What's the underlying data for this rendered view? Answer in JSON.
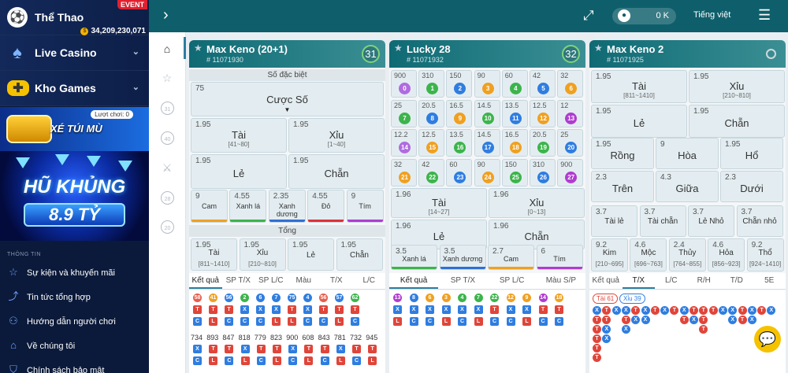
{
  "sidebar": {
    "items": [
      {
        "label": "Thể Thao",
        "badge": "EVENT",
        "jackpot": "34,209,230,071"
      },
      {
        "label": "Live Casino"
      },
      {
        "label": "Kho Games"
      }
    ],
    "banner1": {
      "text": "XÉ TÚI MÙ",
      "tag": "Lượt chơi:",
      "count": "0"
    },
    "banner2": {
      "line1": "HŨ KHỦNG",
      "line2": "8.9 TỶ"
    },
    "info_title": "THÔNG TIN",
    "info": [
      "Sự kiện và khuyến mãi",
      "Tin tức tổng hợp",
      "Hướng dẫn người chơi",
      "Về chúng tôi",
      "Chính sách bảo mật"
    ]
  },
  "header": {
    "balance": "0 K",
    "language": "Tiếng việt"
  },
  "panels": [
    {
      "name": "Max Keno (20+1)",
      "id": "# 11071930",
      "countdown": "31",
      "special_label": "Số đặc biệt",
      "special_odd": "75",
      "special_pick": "Cược Số",
      "big": [
        {
          "odd": "1.95",
          "label": "Tài",
          "range": "[41~80]"
        },
        {
          "odd": "1.95",
          "label": "Xỉu",
          "range": "[1~40]"
        },
        {
          "odd": "1.95",
          "label": "Lẻ",
          "range": ""
        },
        {
          "odd": "1.95",
          "label": "Chẵn",
          "range": ""
        }
      ],
      "colors": [
        {
          "odd": "9",
          "label": "Cam",
          "bar": "#f0a020"
        },
        {
          "odd": "4.55",
          "label": "Xanh lá",
          "bar": "#3cb44b"
        },
        {
          "odd": "2.35",
          "label": "Xanh dương",
          "bar": "#2f6fd6"
        },
        {
          "odd": "4.55",
          "label": "Đỏ",
          "bar": "#e0303a"
        },
        {
          "odd": "9",
          "label": "Tím",
          "bar": "#b03cd0"
        }
      ],
      "sum_label": "Tổng",
      "sums": [
        {
          "odd": "1.95",
          "label": "Tài",
          "range": "[811~1410]"
        },
        {
          "odd": "1.95",
          "label": "Xỉu",
          "range": "[210~810]"
        },
        {
          "odd": "1.95",
          "label": "Lẻ",
          "range": ""
        },
        {
          "odd": "1.95",
          "label": "Chẵn",
          "range": ""
        }
      ],
      "tabs": [
        "Kết quả",
        "SP T/X",
        "SP L/C",
        "Màu",
        "T/X",
        "L/C"
      ],
      "results": [
        {
          "n": "58",
          "c": "#e85d4a",
          "a": "T",
          "b": "C"
        },
        {
          "n": "41",
          "c": "#f0a020",
          "a": "T",
          "b": "L"
        },
        {
          "n": "56",
          "c": "#2f7de0",
          "a": "T",
          "b": "C"
        },
        {
          "n": "2",
          "c": "#3cb44b",
          "a": "X",
          "b": "C"
        },
        {
          "n": "6",
          "c": "#2f7de0",
          "a": "X",
          "b": "C"
        },
        {
          "n": "7",
          "c": "#2f7de0",
          "a": "X",
          "b": "L"
        },
        {
          "n": "75",
          "c": "#2f7de0",
          "a": "T",
          "b": "L"
        },
        {
          "n": "4",
          "c": "#2f7de0",
          "a": "X",
          "b": "C"
        },
        {
          "n": "56",
          "c": "#e85d4a",
          "a": "T",
          "b": "C"
        },
        {
          "n": "57",
          "c": "#2f7de0",
          "a": "T",
          "b": "L"
        },
        {
          "n": "62",
          "c": "#3cb44b",
          "a": "T",
          "b": "C"
        }
      ],
      "sums_row": [
        "734",
        "893",
        "847",
        "818",
        "779",
        "823",
        "900",
        "608",
        "843",
        "781",
        "732",
        "945"
      ]
    },
    {
      "name": "Lucky 28",
      "id": "# 11071932",
      "countdown": "32",
      "grid": [
        {
          "odd": "900",
          "n": "0",
          "c": "#b06be0"
        },
        {
          "odd": "310",
          "n": "1",
          "c": "#3cb44b"
        },
        {
          "odd": "150",
          "n": "2",
          "c": "#2f7de0"
        },
        {
          "odd": "90",
          "n": "3",
          "c": "#f0a020"
        },
        {
          "odd": "60",
          "n": "4",
          "c": "#3cb44b"
        },
        {
          "odd": "42",
          "n": "5",
          "c": "#2f7de0"
        },
        {
          "odd": "32",
          "n": "6",
          "c": "#f0a020"
        },
        {
          "odd": "25",
          "n": "7",
          "c": "#3cb44b"
        },
        {
          "odd": "20.5",
          "n": "8",
          "c": "#2f7de0"
        },
        {
          "odd": "16.5",
          "n": "9",
          "c": "#f0a020"
        },
        {
          "odd": "14.5",
          "n": "10",
          "c": "#3cb44b"
        },
        {
          "odd": "13.5",
          "n": "11",
          "c": "#2f7de0"
        },
        {
          "odd": "12.5",
          "n": "12",
          "c": "#f0a020"
        },
        {
          "odd": "12",
          "n": "13",
          "c": "#b03cd0"
        },
        {
          "odd": "12.2",
          "n": "14",
          "c": "#b06be0"
        },
        {
          "odd": "12.5",
          "n": "15",
          "c": "#f0a020"
        },
        {
          "odd": "13.5",
          "n": "16",
          "c": "#3cb44b"
        },
        {
          "odd": "14.5",
          "n": "17",
          "c": "#2f7de0"
        },
        {
          "odd": "16.5",
          "n": "18",
          "c": "#f0a020"
        },
        {
          "odd": "20.5",
          "n": "19",
          "c": "#3cb44b"
        },
        {
          "odd": "25",
          "n": "20",
          "c": "#2f7de0"
        },
        {
          "odd": "32",
          "n": "21",
          "c": "#f0a020"
        },
        {
          "odd": "42",
          "n": "22",
          "c": "#3cb44b"
        },
        {
          "odd": "60",
          "n": "23",
          "c": "#2f7de0"
        },
        {
          "odd": "90",
          "n": "24",
          "c": "#f0a020"
        },
        {
          "odd": "150",
          "n": "25",
          "c": "#3cb44b"
        },
        {
          "odd": "310",
          "n": "26",
          "c": "#2f7de0"
        },
        {
          "odd": "900",
          "n": "27",
          "c": "#b03cd0"
        }
      ],
      "big": [
        {
          "odd": "1.96",
          "label": "Tài",
          "range": "[14~27]"
        },
        {
          "odd": "1.96",
          "label": "Xỉu",
          "range": "[0~13]"
        },
        {
          "odd": "1.96",
          "label": "Lẻ",
          "range": ""
        },
        {
          "odd": "1.96",
          "label": "Chẵn",
          "range": ""
        }
      ],
      "colors": [
        {
          "odd": "3.5",
          "label": "Xanh lá",
          "bar": "#3cb44b"
        },
        {
          "odd": "3.5",
          "label": "Xanh dương",
          "bar": "#2f6fd6"
        },
        {
          "odd": "2.7",
          "label": "Cam",
          "bar": "#f0a020"
        },
        {
          "odd": "6",
          "label": "Tím",
          "bar": "#b03cd0"
        }
      ],
      "tabs": [
        "Kết quả",
        "SP T/X",
        "SP L/C",
        "Màu S/P"
      ],
      "results": [
        {
          "n": "13",
          "c": "#b03cd0",
          "a": "X",
          "b": "L"
        },
        {
          "n": "8",
          "c": "#2f7de0",
          "a": "X",
          "b": "C"
        },
        {
          "n": "6",
          "c": "#f0a020",
          "a": "X",
          "b": "C"
        },
        {
          "n": "3",
          "c": "#f0a020",
          "a": "X",
          "b": "L"
        },
        {
          "n": "4",
          "c": "#3cb44b",
          "a": "X",
          "b": "C"
        },
        {
          "n": "7",
          "c": "#3cb44b",
          "a": "X",
          "b": "L"
        },
        {
          "n": "22",
          "c": "#3cb44b",
          "a": "T",
          "b": "C"
        },
        {
          "n": "12",
          "c": "#f0a020",
          "a": "X",
          "b": "C"
        },
        {
          "n": "9",
          "c": "#f0a020",
          "a": "X",
          "b": "L"
        },
        {
          "n": "14",
          "c": "#b03cd0",
          "a": "T",
          "b": "C"
        },
        {
          "n": "18",
          "c": "#f0a020",
          "a": "T",
          "b": "C"
        }
      ]
    },
    {
      "name": "Max Keno 2",
      "id": "# 11071925",
      "big": [
        {
          "odd": "1.95",
          "label": "Tài",
          "range": "[811~1410]"
        },
        {
          "odd": "1.95",
          "label": "Xỉu",
          "range": "[210~810]"
        },
        {
          "odd": "1.95",
          "label": "Lẻ",
          "range": ""
        },
        {
          "odd": "1.95",
          "label": "Chẵn",
          "range": ""
        }
      ],
      "row3": [
        {
          "odd": "1.95",
          "label": "Rồng"
        },
        {
          "odd": "9",
          "label": "Hòa"
        },
        {
          "odd": "1.95",
          "label": "Hổ"
        }
      ],
      "row4": [
        {
          "odd": "2.3",
          "label": "Trên"
        },
        {
          "odd": "4.3",
          "label": "Giữa"
        },
        {
          "odd": "2.3",
          "label": "Dưới"
        }
      ],
      "row5": [
        {
          "odd": "3.7",
          "label": "Tài lẻ"
        },
        {
          "odd": "3.7",
          "label": "Tài chẵn"
        },
        {
          "odd": "3.7",
          "label": "Lẻ Nhỏ"
        },
        {
          "odd": "3.7",
          "label": "Chẵn nhỏ"
        }
      ],
      "row6": [
        {
          "odd": "9.2",
          "label": "Kim",
          "range": "[210~695]"
        },
        {
          "odd": "4.6",
          "label": "Mộc",
          "range": "[696~763]"
        },
        {
          "odd": "2.4",
          "label": "Thủy",
          "range": "[764~855]"
        },
        {
          "odd": "4.6",
          "label": "Hỏa",
          "range": "[856~923]"
        },
        {
          "odd": "9.2",
          "label": "Thổ",
          "range": "[924~1410]"
        }
      ],
      "tabs": [
        "Kết quả",
        "T/X",
        "L/C",
        "R/H",
        "T/D",
        "5E"
      ],
      "tag_t": "Tài 61",
      "tag_x": "Xỉu 39"
    }
  ],
  "colors": {
    "accent": "#0e5f6b",
    "tai": "#e0453a",
    "xiu": "#2f7de0"
  }
}
